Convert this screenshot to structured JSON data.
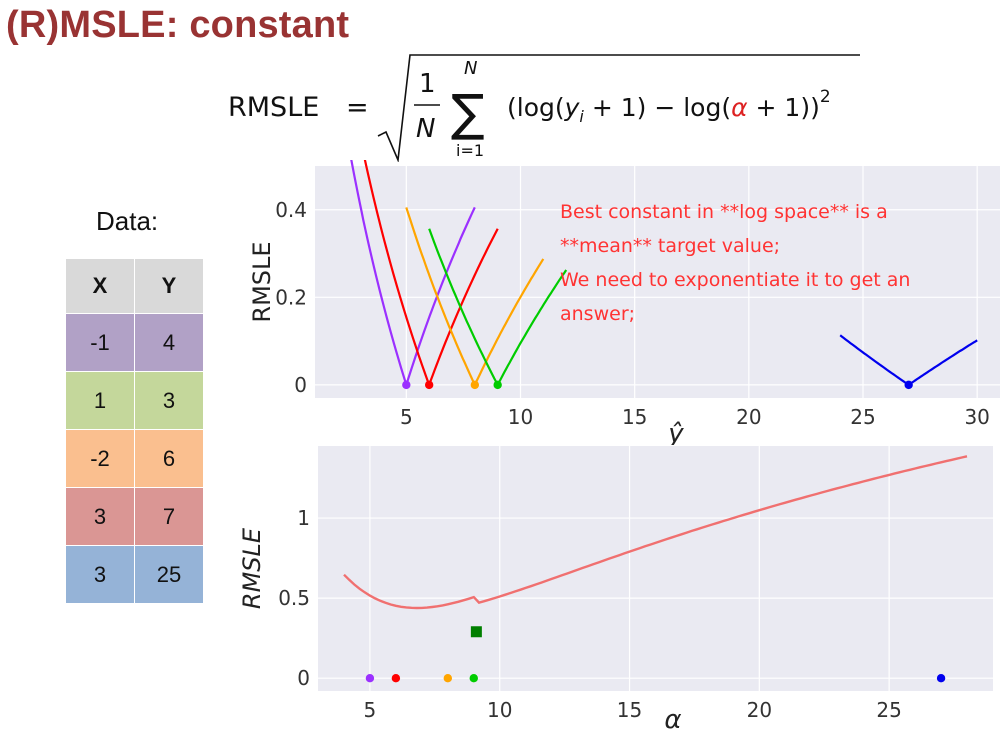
{
  "page": {
    "title": "(R)MSLE: constant"
  },
  "formula": {
    "lhs": "RMSLE",
    "eq": "=",
    "frac_num": "1",
    "frac_den": "N",
    "sum_upper": "N",
    "sum_lower": "i=1",
    "term_a": "(log(",
    "yi_var": "y",
    "yi_sub": "i",
    "term_b": " + 1) − log(",
    "alpha": "α",
    "term_c": " + 1))",
    "power": "2"
  },
  "data_table": {
    "label": "Data:",
    "headers": [
      "X",
      "Y"
    ],
    "rows": [
      {
        "x": "-1",
        "y": "4",
        "color": "#b1a1c6"
      },
      {
        "x": "1",
        "y": "3",
        "color": "#c4d79b"
      },
      {
        "x": "-2",
        "y": "6",
        "color": "#fabf8f"
      },
      {
        "x": "3",
        "y": "7",
        "color": "#da9694"
      },
      {
        "x": "3",
        "y": "25",
        "color": "#95b3d7"
      }
    ]
  },
  "chart_data": [
    {
      "type": "line",
      "xlabel": "ŷ",
      "ylabel": "RMSLE",
      "xlim": [
        1,
        31
      ],
      "ylim": [
        -0.03,
        0.5
      ],
      "xticks": [
        5,
        10,
        15,
        20,
        25,
        30
      ],
      "yticks": [
        0.0,
        0.2,
        0.4
      ],
      "grid": true,
      "annotation": {
        "lines": [
          "Best constant in **log space** is a",
          "**mean** target value;",
          "We need to exponentiate it to get an",
          "answer;"
        ],
        "color": "#ff3333"
      },
      "series": [
        {
          "target": 4,
          "x_range": [
            1.7,
            8
          ],
          "color": "#9b30ff"
        },
        {
          "target": 5,
          "x_range": [
            2.7,
            9
          ],
          "color": "#ff0000"
        },
        {
          "target": 7,
          "x_range": [
            5,
            11
          ],
          "color": "#ffa500"
        },
        {
          "target": 8,
          "x_range": [
            6,
            12
          ],
          "color": "#00cc00"
        },
        {
          "target": 26,
          "x_range": [
            24,
            30
          ],
          "color": "#0000ee"
        }
      ],
      "minima": [
        {
          "x": 5,
          "y": 0,
          "color": "#9b30ff"
        },
        {
          "x": 6,
          "y": 0,
          "color": "#ff0000"
        },
        {
          "x": 8,
          "y": 0,
          "color": "#ffa500"
        },
        {
          "x": 9,
          "y": 0,
          "color": "#00cc00"
        },
        {
          "x": 27,
          "y": 0,
          "color": "#0000ee"
        }
      ]
    },
    {
      "type": "line",
      "xlabel": "α",
      "ylabel": "RMSLE",
      "xlim": [
        3,
        29
      ],
      "ylim": [
        -0.08,
        1.45
      ],
      "xticks": [
        5,
        10,
        15,
        20,
        25
      ],
      "yticks": [
        0.0,
        0.5,
        1.0
      ],
      "grid": true,
      "curve": {
        "targets": [
          4,
          3,
          6,
          7,
          25
        ],
        "x_range": [
          4,
          28
        ],
        "color": "#f07070"
      },
      "minimum": {
        "x": 9.1,
        "y": 0.29,
        "color": "#007f00"
      },
      "points": [
        {
          "x": 5,
          "y": 0,
          "color": "#9b30ff"
        },
        {
          "x": 6,
          "y": 0,
          "color": "#ff0000"
        },
        {
          "x": 8,
          "y": 0,
          "color": "#ffa500"
        },
        {
          "x": 9,
          "y": 0,
          "color": "#00cc00"
        },
        {
          "x": 27,
          "y": 0,
          "color": "#0000ee"
        }
      ]
    }
  ]
}
